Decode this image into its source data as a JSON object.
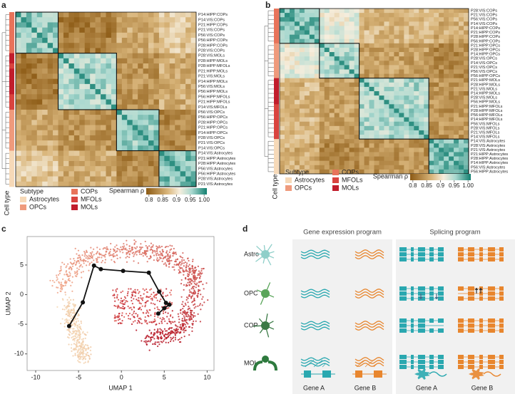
{
  "figure": {
    "a": {
      "letter": "a",
      "rows": [
        "P14:HIPP:COPs",
        "P14:VIS:COPs",
        "P21:HIPP:COPs",
        "P21:VIS:COPs",
        "P56:VIS:COPs",
        "P56:HIPP:COPs",
        "P28:HIPP:COPs",
        "P28:VIS:COPs",
        "P28:VIS:MOLs",
        "P28:HIPP:MOLs",
        "P28:HIPP:MFOLs",
        "P21:HIPP:MOLs",
        "P21:VIS:MOLs",
        "P14:HIPP:MOLs",
        "P56:VIS:MOLs",
        "P56:HIPP:MOLs",
        "P56:HIPP:MFOLs",
        "P21:HIPP:MFOLs",
        "P14:VIS:MFOLs",
        "P56:VIS:OPCs",
        "P56:HIPP:OPCs",
        "P28:HIPP:OPCs",
        "P21:HIPP:OPCs",
        "P14:HIPP:OPCs",
        "P28:VIS:OPCs",
        "P21:VIS:OPCs",
        "P14:VIS:OPCs",
        "P14:VIS:Astrocytes",
        "P21:HIPP:Astrocytes",
        "P28:HIPP:Astrocytes",
        "P56:VIS:Astrocytes",
        "P56:HIPP:Astrocytes",
        "P28:VIS:Astrocytes",
        "P21:VIS:Astrocytes"
      ],
      "axis_label": "Cell type",
      "legend_title": "Subtype",
      "legend": [
        {
          "name": "Astrocytes",
          "color": "#f6d9b8"
        },
        {
          "name": "OPCs",
          "color": "#ef9a7c"
        },
        {
          "name": "COPs",
          "color": "#e8735a"
        },
        {
          "name": "MFOLs",
          "color": "#d9443f"
        },
        {
          "name": "MOLs",
          "color": "#c11d2c"
        }
      ],
      "colorbar": {
        "label": "Spearman ρ",
        "clim": [
          0.79,
          1.01
        ],
        "ticks": [
          0.8,
          0.85,
          0.9,
          0.95,
          {
            "value": 1,
            "label": "1.00"
          }
        ]
      }
    },
    "b": {
      "letter": "b",
      "rows": [
        "P28:VIS:COPs",
        "P21:VIS:COPs",
        "P56:VIS:COPs",
        "P14:VIS:COPs",
        "P14:HIPP:COPs",
        "P21:HIPP:COPs",
        "P28:HIPP:COPs",
        "P56:HIPP:COPs",
        "P21:HIPP:OPCs",
        "P28:HIPP:OPCs",
        "P14:HIPP:OPCs",
        "P28:VIS:OPCs",
        "P14:VIS:OPCs",
        "P21:VIS:OPCs",
        "P56:VIS:OPCs",
        "P56:HIPP:OPCs",
        "P21:HIPP:MOLs",
        "P28:HIPP:MOLs",
        "P21:VIS:MOLs",
        "P14:HIPP:MOLs",
        "P28:VIS:MOLs",
        "P56:HIPP:MOLs",
        "P21:HIPP:MFOLs",
        "P28:HIPP:MFOLs",
        "P56:HIPP:MFOLs",
        "P14:HIPP:MFOLs",
        "P56:VIS:MFOLs",
        "P28:VIS:MFOLs",
        "P21:VIS:MFOLs",
        "P14:VIS:MFOLs",
        "P14:VIS:Astrocytes",
        "P28:VIS:Astrocytes",
        "P21:VIS:Astrocytes",
        "P21:HIPP:Astrocytes",
        "P28:HIPP:Astrocytes",
        "P14:HIPP:Astrocytes",
        "P56:VIS:Astrocytes",
        "P56:HIPP:Astrocytes"
      ],
      "axis_label": "Cell type",
      "legend_title": "Subtype",
      "legend": [
        {
          "name": "Astrocytes",
          "color": "#f6d9b8"
        },
        {
          "name": "OPCs",
          "color": "#ef9a7c"
        },
        {
          "name": "COPs",
          "color": "#e8735a"
        },
        {
          "name": "MFOLs",
          "color": "#d9443f"
        },
        {
          "name": "MOLs",
          "color": "#c11d2c"
        }
      ],
      "colorbar": {
        "label": "Spearman ρ",
        "clim": [
          0.79,
          1.01
        ],
        "ticks": [
          0.8,
          0.85,
          0.9,
          0.95,
          {
            "value": 1,
            "label": "1.00"
          }
        ]
      }
    },
    "c": {
      "letter": "c",
      "type": "scatter",
      "xlabel": "UMAP 1",
      "ylabel": "UMAP 2",
      "xlim": [
        -11,
        10.8
      ],
      "ylim": [
        -12.8,
        9.8
      ],
      "xticks": [
        -10,
        -5,
        0,
        5,
        10
      ],
      "yticks": [
        5,
        0,
        -5,
        -10
      ],
      "trajectory": {
        "x": [
          -6.1,
          -4.5,
          -3.2,
          -2.4,
          0.2,
          3.2,
          4.4,
          5.2,
          5.6,
          5.0,
          4.3
        ],
        "y": [
          -5.3,
          -1.3,
          4.9,
          4.3,
          4.0,
          3.7,
          0.5,
          -1.4,
          -1.7,
          -2.3,
          -3.2
        ]
      }
    },
    "d": {
      "letter": "d",
      "columns": [
        "Gene expression program",
        "Splicing program"
      ],
      "cell_types": [
        "Astro",
        "OPC",
        "COP",
        "MOL"
      ],
      "genes": [
        "Gene A",
        "Gene B",
        "Gene A",
        "Gene B"
      ]
    }
  }
}
